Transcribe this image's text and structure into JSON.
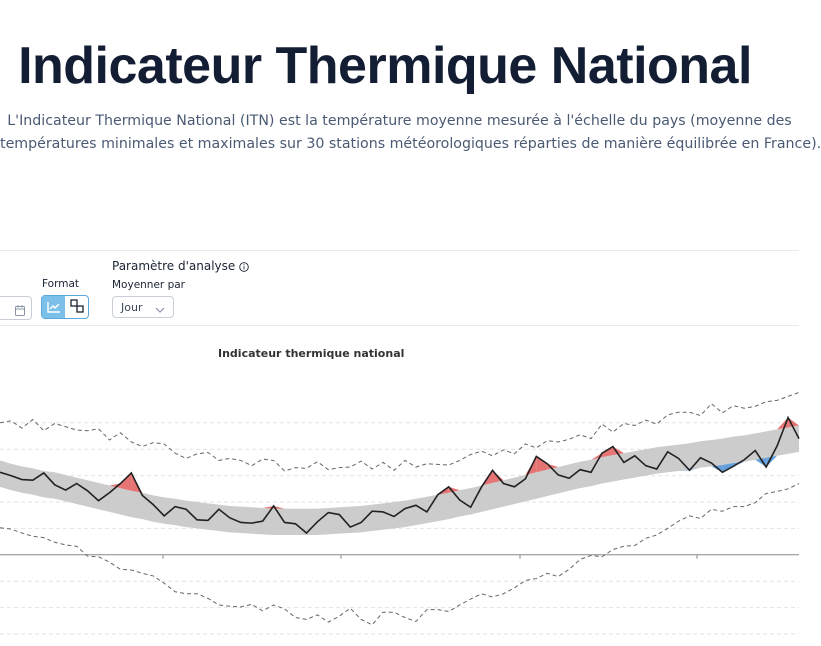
{
  "header": {
    "title": "Indicateur Thermique National",
    "intro_line1": "L'Indicateur Thermique National (ITN) est la température moyenne mesurée à l'échelle du pays (moyenne des",
    "intro_line2": "températures minimales et maximales sur 30 stations météorologiques réparties de manière équilibrée en France)."
  },
  "controls": {
    "format_label": "Format",
    "format_options": [
      "line-chart-icon",
      "compare-icon"
    ],
    "format_selected": "line-chart-icon",
    "analysis_title": "Paramètre d'analyse",
    "average_by_label": "Moyenner par",
    "average_by_value": "Jour"
  },
  "chart": {
    "title": "Indicateur thermique national"
  },
  "colors": {
    "title": "#131d33",
    "above_normal": "#e25c5c",
    "below_normal": "#4a8fd6",
    "normal_band": "#c7c7c7",
    "mean_line": "#222222",
    "records_line": "#666666",
    "format_active": "#7cc0ea"
  },
  "chart_data": {
    "type": "area",
    "title": "Indicateur thermique national",
    "series": [
      {
        "values": [
          12.5,
          12.0,
          11.4,
          11.3,
          12.4,
          10.6,
          9.8,
          10.8,
          9.7,
          8.2,
          9.4,
          10.8,
          12.4,
          9.0,
          7.6,
          5.9,
          7.3,
          6.9,
          5.3,
          5.2,
          6.9,
          5.6,
          4.9,
          4.8,
          5.1,
          7.4,
          4.9,
          4.7,
          3.3,
          5.0,
          6.4,
          6.1,
          4.2,
          4.9,
          6.6,
          6.5,
          5.8,
          7.0,
          7.5,
          6.5,
          9.1,
          10.3,
          8.3,
          7.2,
          10.3,
          12.8,
          10.8,
          10.3,
          11.5,
          14.9,
          13.8,
          12.1,
          11.6,
          12.9,
          12.5,
          15.4,
          16.4,
          14.0,
          15.0,
          13.5,
          13.0,
          15.6,
          14.6,
          12.8,
          14.7,
          13.9,
          12.5,
          13.4,
          14.4,
          15.8,
          13.3,
          16.5,
          20.8,
          17.6
        ]
      },
      {
        "values": [
          12.3,
          11.8,
          11.4,
          11.1,
          10.7,
          10.5,
          10.1,
          9.7,
          9.3,
          8.9,
          8.5,
          8.1,
          7.7,
          7.4,
          7.0,
          6.7,
          6.5,
          6.2,
          6.0,
          5.8,
          5.6,
          5.4,
          5.3,
          5.2,
          5.1,
          5.0,
          5.0,
          5.0,
          5.0,
          5.0,
          5.1,
          5.2,
          5.3,
          5.4,
          5.6,
          5.8,
          6.0,
          6.2,
          6.5,
          6.8,
          7.1,
          7.4,
          7.8,
          8.1,
          8.5,
          8.9,
          9.3,
          9.7,
          10.1,
          10.5,
          10.9,
          11.3,
          11.7,
          12.1,
          12.4,
          12.8,
          13.1,
          13.4,
          13.7,
          14.0,
          14.3,
          14.5,
          14.7,
          14.9,
          15.2,
          15.4,
          15.6,
          15.9,
          16.1,
          16.4,
          16.7,
          17.0,
          17.3,
          17.6
        ]
      }
    ],
    "normal_band": {
      "lower": [
        10.3,
        9.8,
        9.4,
        9.1,
        8.7,
        8.5,
        8.1,
        7.7,
        7.3,
        6.9,
        6.5,
        6.1,
        5.7,
        5.4,
        5.0,
        4.7,
        4.5,
        4.2,
        4.0,
        3.8,
        3.6,
        3.4,
        3.3,
        3.2,
        3.1,
        3.0,
        3.0,
        3.0,
        3.0,
        3.0,
        3.1,
        3.2,
        3.3,
        3.4,
        3.6,
        3.8,
        4.0,
        4.2,
        4.5,
        4.8,
        5.1,
        5.4,
        5.8,
        6.1,
        6.5,
        6.9,
        7.3,
        7.7,
        8.1,
        8.5,
        8.9,
        9.3,
        9.7,
        10.1,
        10.4,
        10.8,
        11.1,
        11.4,
        11.7,
        12.0,
        12.3,
        12.5,
        12.7,
        12.9,
        13.2,
        13.4,
        13.6,
        13.9,
        14.1,
        14.4,
        14.7,
        15.0,
        15.3,
        15.6
      ],
      "upper": [
        14.3,
        13.8,
        13.4,
        13.1,
        12.7,
        12.5,
        12.1,
        11.7,
        11.3,
        10.9,
        10.5,
        10.1,
        9.7,
        9.4,
        9.0,
        8.7,
        8.5,
        8.2,
        8.0,
        7.8,
        7.6,
        7.4,
        7.3,
        7.2,
        7.1,
        7.0,
        7.0,
        7.0,
        7.0,
        7.0,
        7.1,
        7.2,
        7.3,
        7.4,
        7.6,
        7.8,
        8.0,
        8.2,
        8.5,
        8.8,
        9.1,
        9.4,
        9.8,
        10.1,
        10.5,
        10.9,
        11.3,
        11.7,
        12.1,
        12.5,
        12.9,
        13.3,
        13.7,
        14.1,
        14.4,
        14.8,
        15.1,
        15.4,
        15.7,
        16.0,
        16.3,
        16.5,
        16.7,
        16.9,
        17.2,
        17.4,
        17.6,
        17.9,
        18.1,
        18.4,
        18.7,
        19.0,
        19.3,
        19.6
      ]
    },
    "records": {
      "max": [
        20.0,
        20.3,
        19.2,
        20.5,
        18.8,
        19.9,
        19.4,
        18.9,
        18.8,
        19.1,
        17.4,
        18.5,
        17.1,
        16.4,
        17.0,
        16.8,
        15.4,
        14.6,
        15.3,
        15.5,
        14.3,
        14.6,
        14.3,
        13.5,
        14.5,
        14.3,
        12.7,
        13.2,
        13.1,
        14.1,
        12.9,
        13.2,
        13.3,
        14.2,
        13.0,
        14.0,
        12.8,
        14.3,
        13.3,
        13.8,
        13.7,
        13.6,
        14.3,
        15.2,
        15.7,
        15.0,
        15.9,
        15.3,
        16.8,
        16.2,
        17.3,
        17.1,
        17.5,
        18.2,
        17.6,
        19.8,
        18.6,
        19.9,
        19.6,
        20.4,
        19.8,
        21.2,
        21.6,
        21.6,
        21.1,
        22.9,
        21.5,
        22.6,
        22.2,
        22.5,
        23.2,
        23.4,
        24.0,
        24.6
      ],
      "min": [
        4.1,
        3.9,
        3.3,
        2.8,
        2.6,
        1.9,
        1.5,
        1.3,
        -0.2,
        -0.3,
        -1.1,
        -2.2,
        -2.3,
        -2.8,
        -3.2,
        -4.3,
        -5.6,
        -5.9,
        -5.9,
        -6.6,
        -7.6,
        -7.8,
        -7.9,
        -7.5,
        -8.5,
        -7.6,
        -8.2,
        -9.5,
        -9.8,
        -9.1,
        -10.2,
        -9.3,
        -8.1,
        -9.8,
        -10.6,
        -8.7,
        -8.7,
        -9.5,
        -10.1,
        -8.3,
        -8.3,
        -8.6,
        -7.6,
        -6.7,
        -5.9,
        -6.4,
        -5.9,
        -5.0,
        -3.9,
        -3.6,
        -2.8,
        -3.3,
        -2.2,
        -0.7,
        -0.1,
        -0.3,
        0.8,
        1.3,
        1.4,
        2.5,
        3.0,
        4.0,
        5.1,
        5.9,
        5.5,
        6.9,
        6.6,
        7.3,
        7.3,
        7.9,
        9.3,
        9.6,
        10.0,
        10.8
      ]
    },
    "ylim": [
      -12,
      28
    ],
    "grid": true
  }
}
